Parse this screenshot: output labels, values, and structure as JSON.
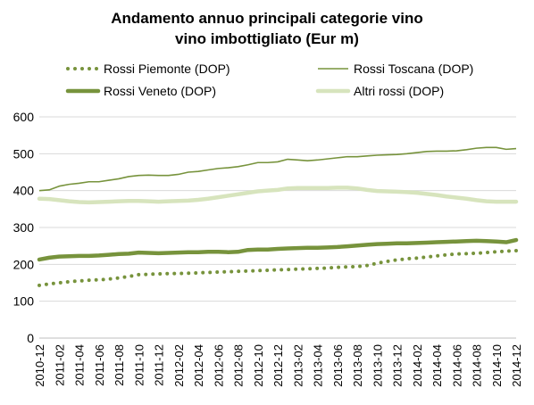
{
  "chart_data": {
    "type": "line",
    "title": "Andamento annuo principali categorie vino",
    "subtitle": "vino imbottigliato (Eur m)",
    "xlabel": "",
    "ylabel": "",
    "ylim": [
      0,
      600
    ],
    "yticks": [
      "0",
      "100",
      "200",
      "300",
      "400",
      "500",
      "600"
    ],
    "grid": "horizontal",
    "legend_position": "top",
    "x": [
      "2010-12",
      "2011-01",
      "2011-02",
      "2011-03",
      "2011-04",
      "2011-05",
      "2011-06",
      "2011-07",
      "2011-08",
      "2011-09",
      "2011-10",
      "2011-11",
      "2011-12",
      "2012-01",
      "2012-02",
      "2012-03",
      "2012-04",
      "2012-05",
      "2012-06",
      "2012-07",
      "2012-08",
      "2012-09",
      "2012-10",
      "2012-11",
      "2012-12",
      "2013-01",
      "2013-02",
      "2013-03",
      "2013-04",
      "2013-05",
      "2013-06",
      "2013-07",
      "2013-08",
      "2013-09",
      "2013-10",
      "2013-11",
      "2013-12",
      "2014-01",
      "2014-02",
      "2014-03",
      "2014-04",
      "2014-05",
      "2014-06",
      "2014-07",
      "2014-08",
      "2014-09",
      "2014-10",
      "2014-11",
      "2014-12"
    ],
    "x_tick_labels": [
      "2010-12",
      "2011-02",
      "2011-04",
      "2011-06",
      "2011-08",
      "2011-10",
      "2011-12",
      "2012-02",
      "2012-04",
      "2012-06",
      "2012-08",
      "2012-10",
      "2012-12",
      "2013-02",
      "2013-04",
      "2013-06",
      "2013-08",
      "2013-10",
      "2013-12",
      "2014-02",
      "2014-04",
      "2014-06",
      "2014-08",
      "2014-10",
      "2014-12"
    ],
    "series": [
      {
        "name": "Rossi Piemonte (DOP)",
        "color": "#77933c",
        "style": "dotted",
        "values": [
          143,
          147,
          150,
          153,
          155,
          157,
          158,
          160,
          163,
          167,
          172,
          173,
          174,
          175,
          175,
          176,
          177,
          178,
          179,
          180,
          181,
          182,
          183,
          184,
          185,
          186,
          187,
          188,
          189,
          190,
          192,
          193,
          194,
          197,
          203,
          208,
          212,
          215,
          217,
          220,
          223,
          226,
          228,
          229,
          230,
          232,
          234,
          236,
          237
        ]
      },
      {
        "name": "Rossi Toscana (DOP)",
        "color": "#77933c",
        "style": "thin",
        "values": [
          400,
          402,
          412,
          417,
          420,
          424,
          424,
          428,
          432,
          438,
          441,
          442,
          441,
          441,
          444,
          450,
          452,
          456,
          460,
          462,
          465,
          470,
          476,
          476,
          478,
          485,
          483,
          481,
          483,
          486,
          489,
          492,
          492,
          494,
          496,
          497,
          498,
          500,
          503,
          506,
          507,
          507,
          508,
          511,
          515,
          517,
          517,
          512,
          514
        ]
      },
      {
        "name": "Rossi Veneto (DOP)",
        "color": "#77933c",
        "style": "thick",
        "values": [
          213,
          218,
          221,
          222,
          223,
          223,
          224,
          226,
          228,
          229,
          232,
          231,
          230,
          231,
          232,
          233,
          233,
          234,
          234,
          233,
          234,
          239,
          240,
          240,
          242,
          243,
          244,
          245,
          245,
          246,
          247,
          249,
          251,
          253,
          255,
          256,
          257,
          257,
          258,
          259,
          260,
          261,
          262,
          263,
          264,
          263,
          262,
          260,
          266
        ]
      },
      {
        "name": "Altri rossi (DOP)",
        "color": "#d7e4bd",
        "style": "thick",
        "values": [
          378,
          377,
          374,
          371,
          369,
          368,
          369,
          370,
          371,
          372,
          372,
          371,
          370,
          371,
          372,
          373,
          375,
          378,
          382,
          386,
          390,
          394,
          398,
          400,
          402,
          406,
          407,
          407,
          407,
          407,
          408,
          408,
          406,
          402,
          399,
          398,
          397,
          396,
          394,
          391,
          388,
          384,
          381,
          378,
          374,
          371,
          370,
          370,
          370
        ]
      }
    ]
  }
}
